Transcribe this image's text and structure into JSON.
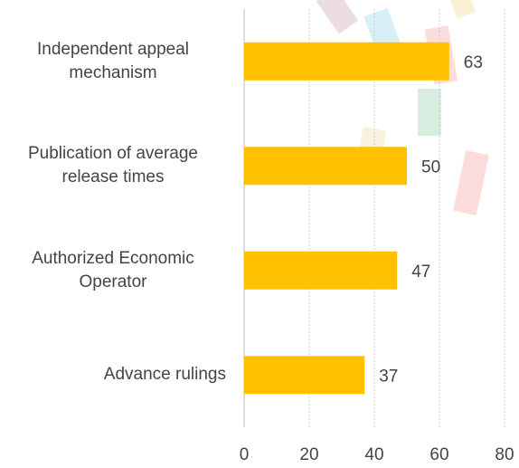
{
  "chart_data": {
    "type": "bar",
    "orientation": "horizontal",
    "categories": [
      "Independent appeal mechanism",
      "Publication of average release times",
      "Authorized Economic Operator",
      "Advance rulings"
    ],
    "values": [
      63,
      50,
      47,
      37
    ],
    "color": "#ffc000",
    "xlim": [
      0,
      80
    ],
    "xticks": [
      0,
      20,
      40,
      60,
      80
    ],
    "grid": true
  }
}
